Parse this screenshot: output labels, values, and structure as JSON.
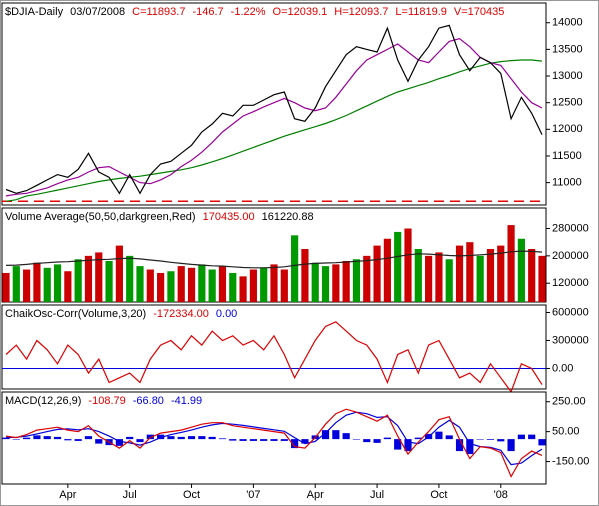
{
  "chart_data": [
    {
      "type": "line",
      "header": [
        {
          "text": "$DJIA-Daily",
          "color": "#000000"
        },
        {
          "text": "03/07/2008",
          "color": "#000000"
        },
        {
          "text": "C=11893.7",
          "color": "#dd0000"
        },
        {
          "text": "-146.7",
          "color": "#dd0000"
        },
        {
          "text": "-1.22%",
          "color": "#dd0000"
        },
        {
          "text": "O=12039.1",
          "color": "#dd0000"
        },
        {
          "text": "H=12093.7",
          "color": "#dd0000"
        },
        {
          "text": "L=11819.9",
          "color": "#dd0000"
        },
        {
          "text": "V=170435",
          "color": "#dd0000"
        }
      ],
      "ylim": [
        10580,
        14370
      ],
      "yticks": [
        11000,
        11500,
        12000,
        12500,
        13000,
        13500,
        14000
      ],
      "reference_line": {
        "value": 10650,
        "color": "#ee0000"
      },
      "series": [
        {
          "color": "#008000",
          "values": [
            10650,
            10680,
            10750,
            10780,
            10820,
            10860,
            10900,
            10940,
            10980,
            11020,
            11050,
            11080,
            11100,
            11120,
            11150,
            11180,
            11210,
            11240,
            11280,
            11330,
            11390,
            11450,
            11520,
            11590,
            11660,
            11730,
            11800,
            11870,
            11930,
            11990,
            12050,
            12110,
            12180,
            12260,
            12350,
            12440,
            12530,
            12620,
            12700,
            12760,
            12820,
            12880,
            12950,
            13010,
            13080,
            13140,
            13190,
            13240,
            13270,
            13290,
            13300,
            13300,
            13280
          ]
        },
        {
          "color": "#990099",
          "values": [
            10750,
            10780,
            10800,
            10850,
            10900,
            10980,
            11050,
            11100,
            11200,
            11280,
            11300,
            11200,
            11100,
            11000,
            10980,
            11050,
            11150,
            11300,
            11420,
            11570,
            11750,
            11950,
            12100,
            12250,
            12330,
            12420,
            12500,
            12580,
            12500,
            12400,
            12350,
            12400,
            12600,
            12850,
            13100,
            13300,
            13400,
            13500,
            13600,
            13450,
            13300,
            13250,
            13450,
            13650,
            13700,
            13550,
            13350,
            13250,
            13200,
            12950,
            12700,
            12500,
            12400
          ]
        },
        {
          "color": "#000000",
          "values": [
            10870,
            10800,
            10850,
            10950,
            11050,
            11150,
            11100,
            11250,
            11550,
            11200,
            11100,
            10800,
            11150,
            10800,
            11150,
            11350,
            11400,
            11550,
            11700,
            11950,
            12100,
            12300,
            12250,
            12450,
            12450,
            12550,
            12650,
            12700,
            12200,
            12150,
            12400,
            12800,
            13100,
            13400,
            13550,
            13500,
            13450,
            13900,
            13300,
            12900,
            13300,
            13550,
            13900,
            13950,
            13400,
            13100,
            13350,
            13250,
            13050,
            12200,
            12600,
            12300,
            11900
          ]
        }
      ]
    },
    {
      "type": "bar",
      "header": [
        {
          "text": "Volume Average(50,50,darkgreen,Red)",
          "color": "#000000"
        },
        {
          "text": "170435.00",
          "color": "#dd0000"
        },
        {
          "text": "161220.88",
          "color": "#000000"
        }
      ],
      "ylim": [
        65000,
        340000
      ],
      "yticks": [
        120000,
        200000,
        280000
      ],
      "series": [
        {
          "type": "bar",
          "colors": [
            "#cc0000",
            "#009900",
            "#cc0000",
            "#cc0000",
            "#009900",
            "#009900",
            "#cc0000",
            "#009900",
            "#cc0000",
            "#cc0000",
            "#009900",
            "#cc0000",
            "#009900",
            "#009900",
            "#cc0000",
            "#cc0000",
            "#009900",
            "#cc0000",
            "#cc0000",
            "#009900",
            "#009900",
            "#cc0000",
            "#009900",
            "#cc0000",
            "#cc0000",
            "#009900",
            "#cc0000",
            "#cc0000",
            "#009900",
            "#cc0000",
            "#009900",
            "#009900",
            "#cc0000",
            "#cc0000",
            "#009900",
            "#cc0000",
            "#cc0000",
            "#cc0000",
            "#009900",
            "#cc0000",
            "#009900",
            "#cc0000",
            "#cc0000",
            "#009900",
            "#cc0000",
            "#cc0000",
            "#009900",
            "#cc0000",
            "#cc0000",
            "#cc0000",
            "#009900",
            "#cc0000",
            "#cc0000"
          ],
          "values": [
            150000,
            170000,
            160000,
            180000,
            165000,
            175000,
            155000,
            190000,
            200000,
            210000,
            185000,
            230000,
            200000,
            170000,
            160000,
            150000,
            155000,
            170000,
            165000,
            175000,
            160000,
            170000,
            150000,
            140000,
            160000,
            165000,
            175000,
            160000,
            260000,
            220000,
            180000,
            170000,
            175000,
            185000,
            190000,
            200000,
            230000,
            250000,
            270000,
            280000,
            220000,
            200000,
            210000,
            190000,
            230000,
            240000,
            200000,
            220000,
            230000,
            290000,
            250000,
            220000,
            200000
          ]
        },
        {
          "color": "#222222",
          "values": [
            172000,
            173000,
            175000,
            178000,
            180000,
            182000,
            183000,
            185000,
            187000,
            189000,
            190000,
            192000,
            193000,
            191000,
            188000,
            185000,
            181000,
            178000,
            175000,
            173000,
            171000,
            170000,
            168000,
            166000,
            165000,
            165000,
            166000,
            168000,
            172000,
            176000,
            178000,
            179000,
            180000,
            182000,
            184000,
            186000,
            189000,
            193000,
            198000,
            203000,
            206000,
            205000,
            203000,
            201000,
            200000,
            201000,
            203000,
            205000,
            208000,
            212000,
            214000,
            213000,
            211000
          ]
        }
      ]
    },
    {
      "type": "line",
      "header": [
        {
          "text": "ChaikOsc-Corr(Volume,3,20)",
          "color": "#000000"
        },
        {
          "text": "-172334.00",
          "color": "#dd0000"
        },
        {
          "text": "0.00",
          "color": "#0000dd"
        }
      ],
      "ylim": [
        -220000,
        680000
      ],
      "yticks": [
        {
          "value": 0,
          "label": "0.00"
        },
        300000,
        600000
      ],
      "baseline": {
        "value": 0,
        "color": "#0000dd"
      },
      "series": [
        {
          "color": "#dd0000",
          "values": [
            150000,
            250000,
            100000,
            300000,
            200000,
            50000,
            250000,
            150000,
            -50000,
            100000,
            -150000,
            -100000,
            -50000,
            -150000,
            100000,
            250000,
            300000,
            200000,
            350000,
            250000,
            400000,
            300000,
            350000,
            250000,
            300000,
            200000,
            350000,
            150000,
            -100000,
            100000,
            300000,
            450000,
            500000,
            400000,
            300000,
            250000,
            100000,
            -150000,
            150000,
            200000,
            -50000,
            250000,
            300000,
            100000,
            -100000,
            -50000,
            -150000,
            50000,
            -100000,
            -250000,
            50000,
            0,
            -172334
          ]
        }
      ]
    },
    {
      "type": "line",
      "header": [
        {
          "text": "MACD(12,26,9)",
          "color": "#000000"
        },
        {
          "text": "-108.79",
          "color": "#dd0000"
        },
        {
          "text": "-66.80",
          "color": "#0000dd"
        },
        {
          "text": "-41.99",
          "color": "#0000dd"
        }
      ],
      "ylim": [
        -300,
        315
      ],
      "yticks": [
        {
          "value": -150,
          "label": "-150.00"
        },
        {
          "value": 50,
          "label": "50.00"
        },
        {
          "value": 250,
          "label": "250.00"
        }
      ],
      "categories": [
        null,
        null,
        null,
        null,
        null,
        null,
        "Apr",
        null,
        null,
        null,
        null,
        null,
        "Jul",
        null,
        null,
        null,
        null,
        null,
        "Oct",
        null,
        null,
        null,
        null,
        null,
        "'07",
        null,
        null,
        null,
        null,
        null,
        "Apr",
        null,
        null,
        null,
        null,
        null,
        "Jul",
        null,
        null,
        null,
        null,
        null,
        "Oct",
        null,
        null,
        null,
        null,
        null,
        "'08",
        null,
        null,
        null,
        null
      ],
      "series": [
        {
          "type": "bar",
          "color": "#0000dd",
          "values": [
            10,
            -2,
            10,
            25,
            20,
            15,
            -8,
            -12,
            20,
            -30,
            -40,
            -45,
            15,
            -20,
            30,
            30,
            20,
            15,
            20,
            20,
            15,
            5,
            -10,
            -12,
            -12,
            -12,
            -12,
            -12,
            -60,
            -30,
            25,
            60,
            60,
            40,
            0,
            -20,
            -25,
            10,
            -70,
            -80,
            10,
            35,
            50,
            25,
            -80,
            -100,
            0,
            -5,
            -15,
            -80,
            30,
            30,
            -41.99
          ]
        },
        {
          "color": "#0000dd",
          "values": [
            10,
            12,
            20,
            35,
            50,
            65,
            68,
            62,
            70,
            50,
            20,
            -15,
            -25,
            -40,
            -20,
            10,
            30,
            45,
            60,
            80,
            95,
            105,
            100,
            92,
            82,
            72,
            62,
            52,
            10,
            -30,
            -15,
            40,
            110,
            160,
            180,
            170,
            145,
            150,
            90,
            -20,
            -30,
            15,
            80,
            125,
            80,
            -30,
            -50,
            -55,
            -75,
            -170,
            -160,
            -110,
            -66.8
          ]
        },
        {
          "color": "#dd0000",
          "values": [
            20,
            10,
            30,
            60,
            70,
            80,
            60,
            50,
            90,
            20,
            -20,
            -60,
            -10,
            -60,
            10,
            40,
            50,
            60,
            80,
            100,
            110,
            110,
            90,
            80,
            70,
            60,
            50,
            40,
            -50,
            -60,
            10,
            100,
            170,
            200,
            180,
            150,
            120,
            160,
            20,
            -100,
            -20,
            50,
            130,
            150,
            0,
            -130,
            -50,
            -60,
            -90,
            -250,
            -130,
            -80,
            -108.79
          ]
        }
      ]
    }
  ]
}
